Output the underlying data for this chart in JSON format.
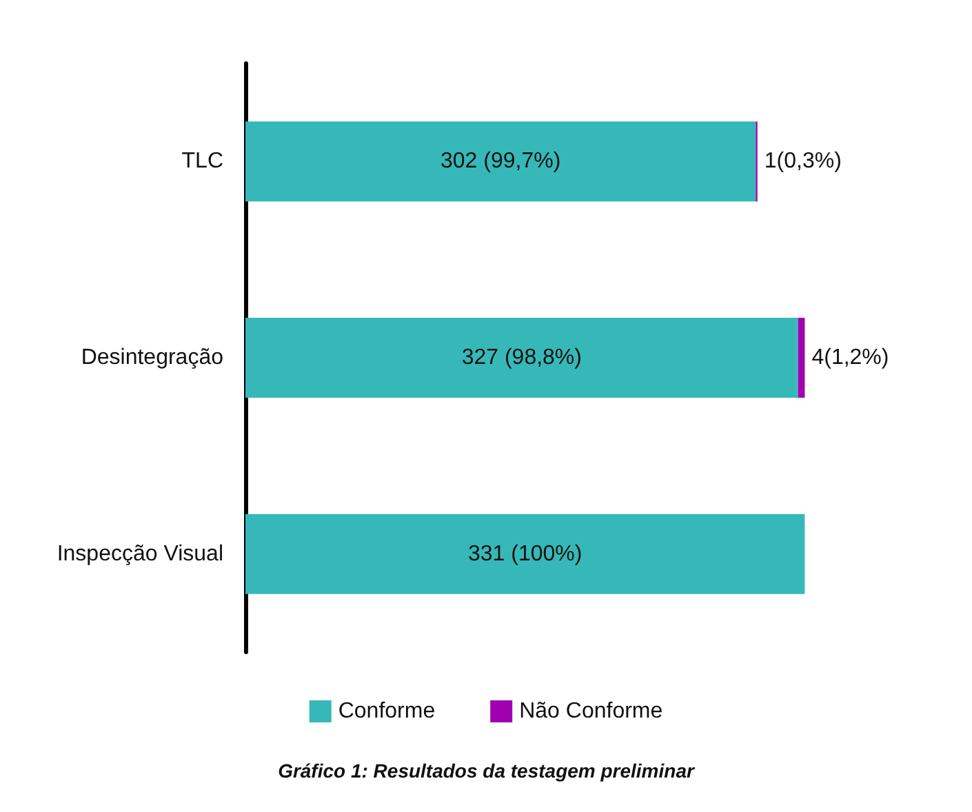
{
  "chart_data": {
    "type": "bar",
    "orientation": "horizontal",
    "stacked": true,
    "tick_labels": "y",
    "title": "Gráfico 1: Resultados da testagem preliminar",
    "categories": [
      "TLC",
      "Desintegração",
      "Inspecção Visual"
    ],
    "series": [
      {
        "name": "Conforme",
        "color": "#36b8b8",
        "values": [
          302,
          327,
          331
        ],
        "value_labels": [
          "302 (99,7%)",
          "327 (98,8%)",
          "331 (100%)"
        ]
      },
      {
        "name": "Não Conforme",
        "color": "#a000b0",
        "values": [
          1,
          4,
          0
        ],
        "value_labels": [
          "1(0,3%)",
          "4(1,2%)",
          null
        ]
      }
    ],
    "legend": "bottom"
  }
}
